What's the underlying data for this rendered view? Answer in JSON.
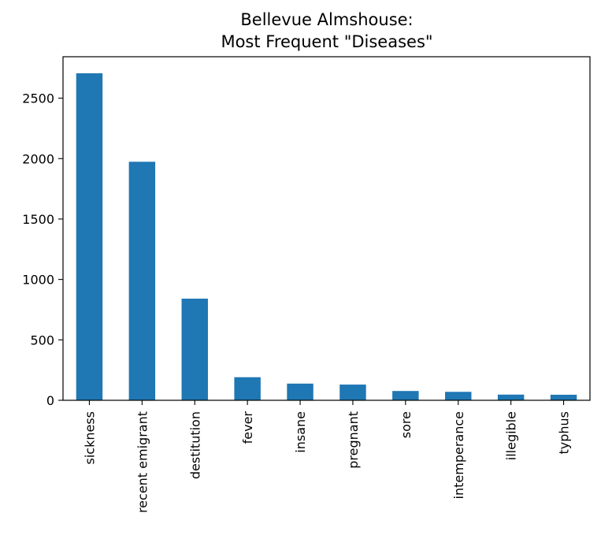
{
  "chart_data": {
    "type": "bar",
    "title_line1": "Bellevue Almshouse:",
    "title_line2": "Most Frequent \"Diseases\"",
    "xlabel": "",
    "ylabel": "",
    "categories": [
      "sickness",
      "recent emigrant",
      "destitution",
      "fever",
      "insane",
      "pregnant",
      "sore",
      "intemperance",
      "illegible",
      "typhus"
    ],
    "values": [
      2706,
      1974,
      841,
      191,
      138,
      130,
      77,
      70,
      47,
      46
    ],
    "ylim": [
      0,
      2843
    ],
    "yticks": [
      0,
      500,
      1000,
      1500,
      2000,
      2500
    ],
    "bar_color": "#1f77b4",
    "grid": false,
    "legend": "none"
  }
}
